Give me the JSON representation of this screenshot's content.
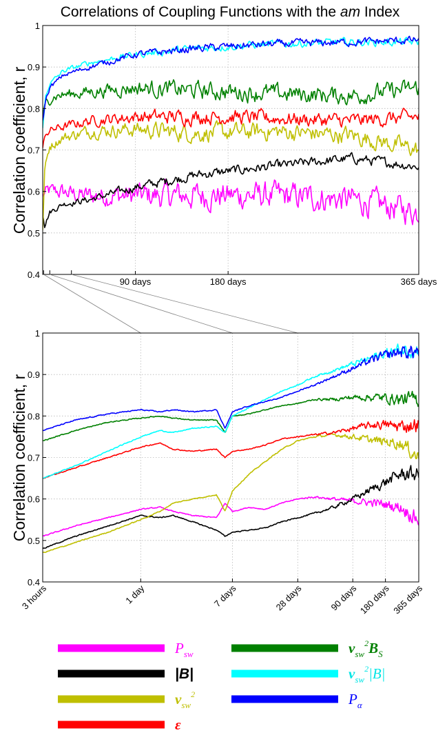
{
  "chart_data": [
    {
      "type": "line",
      "title": "Correlations of Coupling Functions with the am Index",
      "title_parts": [
        "Correlations of Coupling Functions with the ",
        "am",
        " Index"
      ],
      "ylabel": "Correlation coefficient, r",
      "xlabel": "",
      "x_unit": "days",
      "xlim": [
        0.125,
        365
      ],
      "ylim": [
        0.4,
        1
      ],
      "x_scale": "linear",
      "grid": true,
      "xticks": [
        90,
        180,
        365
      ],
      "xtick_labels": [
        "90 days",
        "180 days",
        "365 days"
      ],
      "yticks": [
        0.4,
        0.5,
        0.6,
        0.7,
        0.8,
        0.9,
        1
      ],
      "ytick_labels": [
        "0.4",
        "0.5",
        "0.6",
        "0.7",
        "0.8",
        "0.9",
        "1"
      ],
      "series": [
        {
          "name": "P_sw",
          "color": "#ff00ff",
          "noise": 0.028,
          "x": [
            0.125,
            5,
            15,
            40,
            90,
            150,
            220,
            300,
            365
          ],
          "y": [
            0.59,
            0.6,
            0.6,
            0.59,
            0.59,
            0.59,
            0.59,
            0.58,
            0.55
          ]
        },
        {
          "name": "|B|",
          "color": "#000000",
          "noise": 0.01,
          "x": [
            0.125,
            2,
            7,
            20,
            45,
            90,
            150,
            220,
            300,
            365
          ],
          "y": [
            0.55,
            0.52,
            0.55,
            0.57,
            0.58,
            0.61,
            0.64,
            0.66,
            0.68,
            0.66
          ]
        },
        {
          "name": "v_sw^2",
          "color": "#bfbf00",
          "noise": 0.018,
          "x": [
            0.125,
            2,
            7,
            20,
            45,
            90,
            150,
            220,
            300,
            365
          ],
          "y": [
            0.5,
            0.65,
            0.71,
            0.73,
            0.745,
            0.75,
            0.74,
            0.745,
            0.735,
            0.7
          ]
        },
        {
          "name": "epsilon",
          "color": "#ff0000",
          "noise": 0.015,
          "x": [
            0.125,
            3,
            10,
            45,
            90,
            180,
            300,
            365
          ],
          "y": [
            0.7,
            0.74,
            0.75,
            0.77,
            0.78,
            0.78,
            0.77,
            0.78
          ]
        },
        {
          "name": "v_sw^2 B_S",
          "color": "#008000",
          "noise": 0.018,
          "x": [
            0.125,
            3,
            10,
            45,
            90,
            180,
            300,
            365
          ],
          "y": [
            0.78,
            0.81,
            0.83,
            0.84,
            0.85,
            0.84,
            0.83,
            0.85
          ]
        },
        {
          "name": "v_sw^2 |B|",
          "color": "#00ffff",
          "noise": 0.008,
          "x": [
            0.125,
            3,
            7,
            20,
            45,
            90,
            150,
            220,
            300,
            365
          ],
          "y": [
            0.75,
            0.83,
            0.86,
            0.89,
            0.91,
            0.93,
            0.945,
            0.955,
            0.96,
            0.96
          ]
        },
        {
          "name": "P_alpha",
          "color": "#0000ff",
          "noise": 0.008,
          "x": [
            0.125,
            3,
            7,
            20,
            45,
            90,
            150,
            220,
            300,
            365
          ],
          "y": [
            0.77,
            0.82,
            0.85,
            0.88,
            0.9,
            0.93,
            0.945,
            0.955,
            0.96,
            0.965
          ]
        }
      ]
    },
    {
      "type": "line",
      "ylabel": "Correlation coefficient, r",
      "xlabel": "",
      "x_unit": "days",
      "x_scale": "log",
      "xlim": [
        0.125,
        365
      ],
      "ylim": [
        0.4,
        1
      ],
      "grid": true,
      "xticks": [
        0.125,
        1,
        7,
        28,
        90,
        180,
        365
      ],
      "xtick_labels": [
        "3 hours",
        "1 day",
        "7 days",
        "28 days",
        "90 days",
        "180 days",
        "365 days"
      ],
      "yticks": [
        0.4,
        0.5,
        0.6,
        0.7,
        0.8,
        0.9,
        1
      ],
      "ytick_labels": [
        "0.4",
        "0.5",
        "0.6",
        "0.7",
        "0.8",
        "0.9",
        "1"
      ],
      "series": [
        {
          "name": "P_sw",
          "color": "#ff00ff",
          "x": [
            0.125,
            0.25,
            0.5,
            1,
            1.5,
            2,
            3,
            5,
            6,
            7,
            10,
            14,
            20,
            28,
            40,
            60,
            90,
            150,
            250,
            365
          ],
          "y": [
            0.51,
            0.535,
            0.555,
            0.575,
            0.58,
            0.57,
            0.56,
            0.555,
            0.59,
            0.57,
            0.58,
            0.575,
            0.59,
            0.6,
            0.605,
            0.6,
            0.595,
            0.59,
            0.58,
            0.55
          ]
        },
        {
          "name": "|B|",
          "color": "#000000",
          "x": [
            0.125,
            0.25,
            0.5,
            1,
            1.5,
            2,
            3,
            5,
            6,
            7,
            10,
            14,
            20,
            28,
            40,
            60,
            90,
            150,
            250,
            365
          ],
          "y": [
            0.48,
            0.51,
            0.535,
            0.56,
            0.555,
            0.56,
            0.545,
            0.525,
            0.51,
            0.52,
            0.525,
            0.53,
            0.545,
            0.555,
            0.565,
            0.58,
            0.6,
            0.63,
            0.66,
            0.66
          ]
        },
        {
          "name": "v_sw^2",
          "color": "#bfbf00",
          "x": [
            0.125,
            0.25,
            0.5,
            1,
            1.5,
            2,
            3,
            5,
            6,
            7,
            10,
            14,
            20,
            28,
            40,
            60,
            90,
            150,
            250,
            365
          ],
          "y": [
            0.47,
            0.495,
            0.52,
            0.55,
            0.57,
            0.59,
            0.6,
            0.61,
            0.57,
            0.62,
            0.66,
            0.69,
            0.72,
            0.74,
            0.75,
            0.755,
            0.75,
            0.74,
            0.735,
            0.7
          ]
        },
        {
          "name": "epsilon",
          "color": "#ff0000",
          "x": [
            0.125,
            0.25,
            0.5,
            1,
            1.5,
            2,
            3,
            5,
            6,
            7,
            10,
            14,
            20,
            28,
            40,
            60,
            90,
            150,
            250,
            365
          ],
          "y": [
            0.65,
            0.675,
            0.7,
            0.725,
            0.735,
            0.72,
            0.715,
            0.72,
            0.7,
            0.715,
            0.72,
            0.73,
            0.745,
            0.75,
            0.755,
            0.76,
            0.77,
            0.78,
            0.775,
            0.78
          ]
        },
        {
          "name": "v_sw^2 B_S",
          "color": "#008000",
          "x": [
            0.125,
            0.25,
            0.5,
            1,
            1.5,
            2,
            3,
            5,
            6,
            7,
            10,
            14,
            20,
            28,
            40,
            60,
            90,
            150,
            250,
            365
          ],
          "y": [
            0.74,
            0.765,
            0.785,
            0.795,
            0.8,
            0.795,
            0.79,
            0.79,
            0.76,
            0.8,
            0.805,
            0.815,
            0.825,
            0.83,
            0.84,
            0.84,
            0.845,
            0.845,
            0.84,
            0.84
          ]
        },
        {
          "name": "v_sw^2 |B|",
          "color": "#00ffff",
          "x": [
            0.125,
            0.25,
            0.5,
            1,
            1.5,
            2,
            3,
            5,
            6,
            7,
            10,
            14,
            20,
            28,
            40,
            60,
            90,
            150,
            250,
            365
          ],
          "y": [
            0.65,
            0.68,
            0.715,
            0.75,
            0.765,
            0.76,
            0.77,
            0.775,
            0.76,
            0.8,
            0.82,
            0.84,
            0.86,
            0.875,
            0.895,
            0.91,
            0.925,
            0.945,
            0.96,
            0.96
          ]
        },
        {
          "name": "P_alpha",
          "color": "#0000ff",
          "x": [
            0.125,
            0.25,
            0.5,
            1,
            1.5,
            2,
            3,
            5,
            6,
            7,
            10,
            14,
            20,
            28,
            40,
            60,
            90,
            150,
            250,
            365
          ],
          "y": [
            0.765,
            0.79,
            0.805,
            0.815,
            0.81,
            0.815,
            0.81,
            0.815,
            0.77,
            0.81,
            0.825,
            0.835,
            0.845,
            0.86,
            0.875,
            0.895,
            0.915,
            0.94,
            0.955,
            0.955
          ]
        }
      ]
    }
  ],
  "legend": {
    "placement": "bottom",
    "items": [
      {
        "key": "P_sw",
        "color": "#ff00ff",
        "label_color": "#ff00ff",
        "parts": [
          {
            "t": "P",
            "s": ""
          },
          {
            "t": "sw",
            "s": "sub"
          }
        ]
      },
      {
        "key": "v_sw^2 B_S",
        "color": "#008000",
        "label_color": "#008000",
        "parts": [
          {
            "t": "v",
            "s": "b"
          },
          {
            "t": "sw",
            "s": "sub"
          },
          {
            "t": "2",
            "s": "sup"
          },
          {
            "t": "B",
            "s": "b"
          },
          {
            "t": "S",
            "s": "sub"
          }
        ]
      },
      {
        "key": "|B|",
        "color": "#000000",
        "label_color": "#000000",
        "parts": [
          {
            "t": "|B|",
            "s": ""
          }
        ]
      },
      {
        "key": "v_sw^2 |B|",
        "color": "#00ffff",
        "label_color": "#00e5e5",
        "parts": [
          {
            "t": "v",
            "s": "b"
          },
          {
            "t": "sw",
            "s": "sub"
          },
          {
            "t": "2",
            "s": "sup"
          },
          {
            "t": "|B|",
            "s": ""
          }
        ]
      },
      {
        "key": "v_sw^2",
        "color": "#bfbf00",
        "label_color": "#bfbf00",
        "parts": [
          {
            "t": "v",
            "s": "b"
          },
          {
            "t": "sw",
            "s": "sub"
          },
          {
            "t": "2",
            "s": "sup"
          }
        ]
      },
      {
        "key": "P_alpha",
        "color": "#0000ff",
        "label_color": "#0000ff",
        "parts": [
          {
            "t": "P",
            "s": ""
          },
          {
            "t": "α",
            "s": "sub"
          }
        ]
      },
      {
        "key": "epsilon",
        "color": "#ff0000",
        "label_color": "#ff0000",
        "parts": [
          {
            "t": "ε",
            "s": "b"
          }
        ]
      }
    ]
  }
}
